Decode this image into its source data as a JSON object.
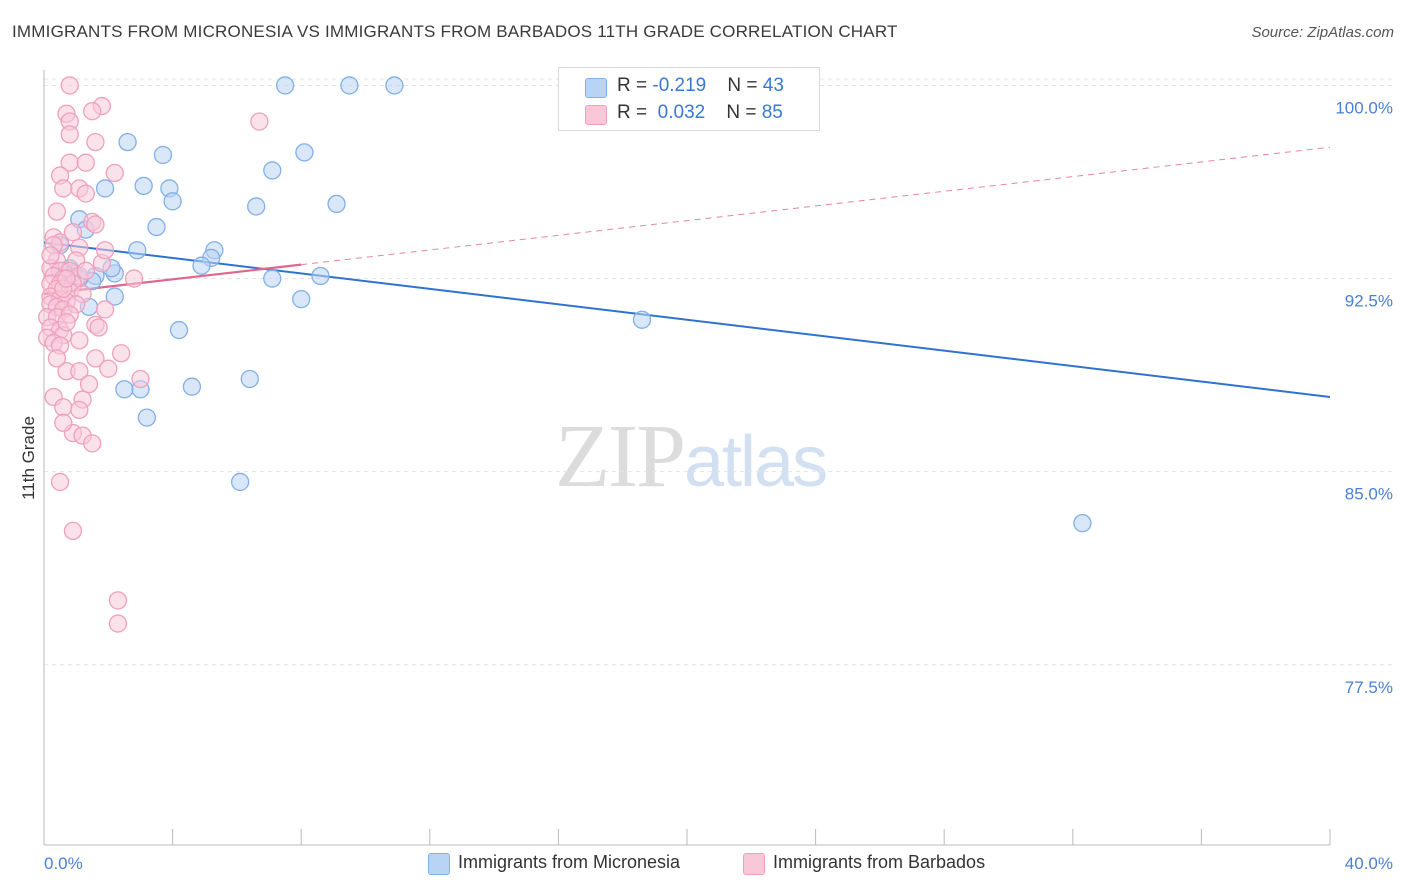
{
  "title": "IMMIGRANTS FROM MICRONESIA VS IMMIGRANTS FROM BARBADOS 11TH GRADE CORRELATION CHART",
  "source": "Source: ZipAtlas.com",
  "watermark": {
    "zip": "ZIP",
    "atlas": "atlas"
  },
  "legend": {
    "r_label": "R = ",
    "n_label": "N = ",
    "series1": {
      "r": "-0.219",
      "n": "43"
    },
    "series2": {
      "r": "0.032",
      "n": "85"
    }
  },
  "bottom_legend": {
    "series1": "Immigrants from Micronesia",
    "series2": "Immigrants from Barbados"
  },
  "colors": {
    "blue": "#7fb0ea",
    "blue_fill": "#b9d3f4",
    "blue_line": "#2f72d0",
    "pink": "#f0a0bc",
    "pink_fill": "#f8c8d8",
    "pink_line": "#e0668f",
    "axis_text": "#4a7fd4"
  },
  "chart_data": {
    "type": "scatter",
    "title": "IMMIGRANTS FROM MICRONESIA VS IMMIGRANTS FROM BARBADOS 11TH GRADE CORRELATION CHART",
    "xlabel": "",
    "ylabel": "11th Grade",
    "xlim": [
      0,
      40
    ],
    "ylim": [
      70.5,
      100.6
    ],
    "x_tick_labels": [
      "0.0%",
      "40.0%"
    ],
    "y_ticks": [
      77.5,
      85.0,
      92.5,
      100.0
    ],
    "y_tick_labels": [
      "77.5%",
      "85.0%",
      "92.5%",
      "100.0%"
    ],
    "grid": true,
    "series": [
      {
        "name": "Immigrants from Micronesia",
        "color": "blue",
        "trend": {
          "x": [
            0,
            40
          ],
          "y": [
            93.9,
            87.9
          ],
          "dashed_from": null
        },
        "points": [
          [
            7.5,
            100.0
          ],
          [
            9.5,
            100.0
          ],
          [
            10.9,
            100.0
          ],
          [
            2.6,
            97.8
          ],
          [
            3.7,
            97.3
          ],
          [
            8.1,
            97.4
          ],
          [
            7.1,
            96.7
          ],
          [
            1.9,
            96.0
          ],
          [
            3.1,
            96.1
          ],
          [
            3.9,
            96.0
          ],
          [
            4.0,
            95.5
          ],
          [
            6.6,
            95.3
          ],
          [
            9.1,
            95.4
          ],
          [
            1.1,
            94.8
          ],
          [
            1.3,
            94.4
          ],
          [
            3.5,
            94.5
          ],
          [
            0.5,
            93.8
          ],
          [
            2.9,
            93.6
          ],
          [
            5.3,
            93.6
          ],
          [
            5.2,
            93.3
          ],
          [
            4.9,
            93.0
          ],
          [
            0.8,
            92.9
          ],
          [
            0.9,
            92.7
          ],
          [
            1.6,
            92.6
          ],
          [
            2.2,
            92.7
          ],
          [
            7.1,
            92.5
          ],
          [
            8.6,
            92.6
          ],
          [
            1.5,
            92.4
          ],
          [
            2.2,
            91.8
          ],
          [
            8.0,
            91.7
          ],
          [
            1.4,
            91.4
          ],
          [
            18.6,
            90.9
          ],
          [
            4.2,
            90.5
          ],
          [
            3.0,
            88.2
          ],
          [
            2.5,
            88.2
          ],
          [
            4.6,
            88.3
          ],
          [
            6.4,
            88.6
          ],
          [
            3.2,
            87.1
          ],
          [
            6.1,
            84.6
          ],
          [
            32.3,
            83.0
          ],
          [
            0.6,
            92.8
          ],
          [
            1.1,
            92.5
          ],
          [
            2.1,
            92.9
          ]
        ]
      },
      {
        "name": "Immigrants from Barbados",
        "color": "pink",
        "trend": {
          "x": [
            0,
            40
          ],
          "y": [
            91.9,
            97.6
          ],
          "dashed_from": 8.0
        },
        "points": [
          [
            0.8,
            100.0
          ],
          [
            1.8,
            99.2
          ],
          [
            0.7,
            98.9
          ],
          [
            1.5,
            99.0
          ],
          [
            0.8,
            98.6
          ],
          [
            6.7,
            98.6
          ],
          [
            0.8,
            98.1
          ],
          [
            1.6,
            97.8
          ],
          [
            0.8,
            97.0
          ],
          [
            0.5,
            96.5
          ],
          [
            0.6,
            96.0
          ],
          [
            1.1,
            96.0
          ],
          [
            1.3,
            95.8
          ],
          [
            1.5,
            94.7
          ],
          [
            1.6,
            94.6
          ],
          [
            0.3,
            94.1
          ],
          [
            0.5,
            93.9
          ],
          [
            1.1,
            93.7
          ],
          [
            0.4,
            93.2
          ],
          [
            1.0,
            93.2
          ],
          [
            1.8,
            93.1
          ],
          [
            0.2,
            92.9
          ],
          [
            0.5,
            92.8
          ],
          [
            0.8,
            92.8
          ],
          [
            0.3,
            92.6
          ],
          [
            0.6,
            92.5
          ],
          [
            1.1,
            92.6
          ],
          [
            2.8,
            92.5
          ],
          [
            0.2,
            92.3
          ],
          [
            0.5,
            92.3
          ],
          [
            0.9,
            92.3
          ],
          [
            0.4,
            92.1
          ],
          [
            0.8,
            92.0
          ],
          [
            1.2,
            91.9
          ],
          [
            0.2,
            91.8
          ],
          [
            0.5,
            91.7
          ],
          [
            0.7,
            91.6
          ],
          [
            0.2,
            91.5
          ],
          [
            0.4,
            91.4
          ],
          [
            0.6,
            91.3
          ],
          [
            1.0,
            91.5
          ],
          [
            1.9,
            91.3
          ],
          [
            0.1,
            91.0
          ],
          [
            0.4,
            91.0
          ],
          [
            0.8,
            91.1
          ],
          [
            1.6,
            90.7
          ],
          [
            0.2,
            90.6
          ],
          [
            0.5,
            90.5
          ],
          [
            0.1,
            90.2
          ],
          [
            0.6,
            90.3
          ],
          [
            0.3,
            90.0
          ],
          [
            0.5,
            89.9
          ],
          [
            2.4,
            89.6
          ],
          [
            1.6,
            89.4
          ],
          [
            0.7,
            88.9
          ],
          [
            1.1,
            88.9
          ],
          [
            3.0,
            88.6
          ],
          [
            0.3,
            87.9
          ],
          [
            1.2,
            87.8
          ],
          [
            0.6,
            87.5
          ],
          [
            1.1,
            87.4
          ],
          [
            0.9,
            86.5
          ],
          [
            1.2,
            86.4
          ],
          [
            1.5,
            86.1
          ],
          [
            0.5,
            84.6
          ],
          [
            0.9,
            82.7
          ],
          [
            2.3,
            80.0
          ],
          [
            2.3,
            79.1
          ],
          [
            0.3,
            93.8
          ],
          [
            0.9,
            94.3
          ],
          [
            0.6,
            92.1
          ],
          [
            1.3,
            92.8
          ],
          [
            1.7,
            90.6
          ],
          [
            0.4,
            89.4
          ],
          [
            0.7,
            92.5
          ],
          [
            2.2,
            96.6
          ],
          [
            0.2,
            93.4
          ],
          [
            0.4,
            95.1
          ],
          [
            1.3,
            97.0
          ],
          [
            0.7,
            90.8
          ],
          [
            1.1,
            90.1
          ],
          [
            2.0,
            89.0
          ],
          [
            1.4,
            88.4
          ],
          [
            0.6,
            86.9
          ],
          [
            1.9,
            93.6
          ]
        ]
      }
    ]
  }
}
